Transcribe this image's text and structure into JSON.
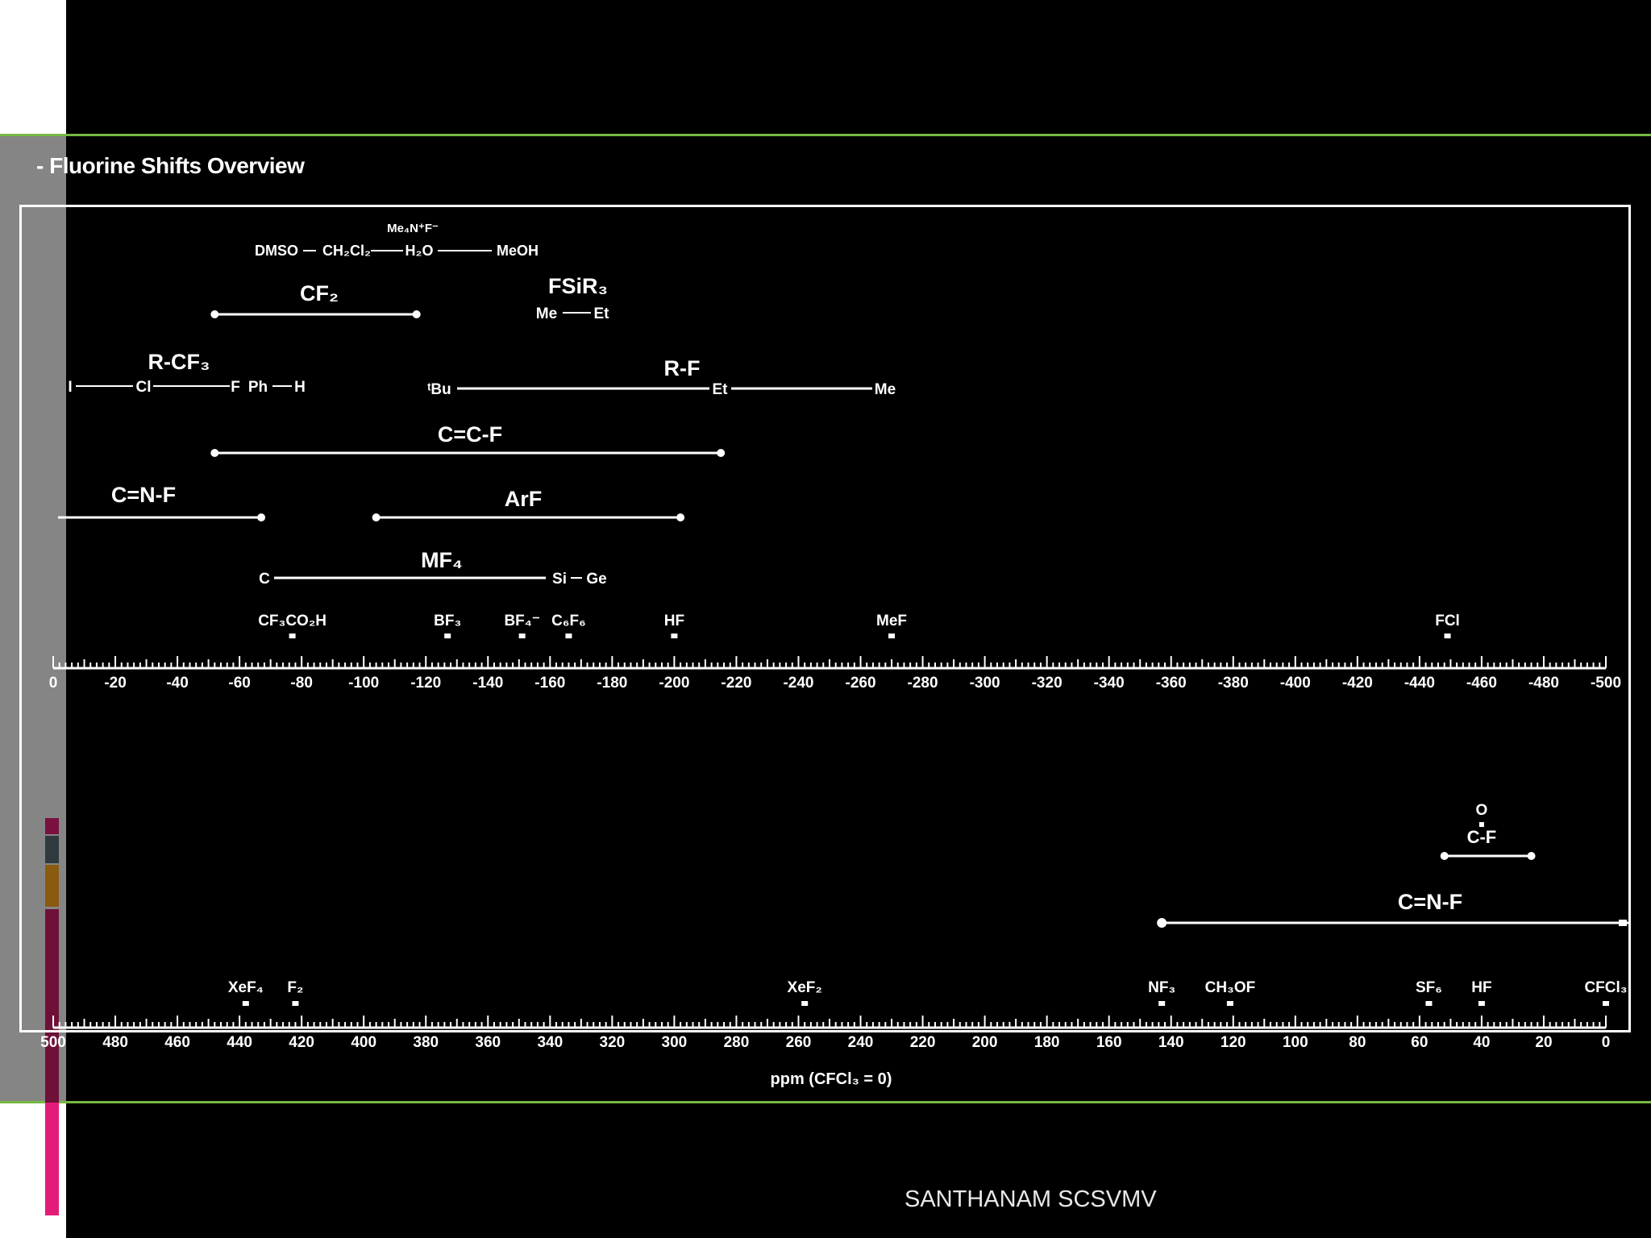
{
  "slide": {
    "title": "- Fluorine Shifts Overview",
    "footer": "SANTHANAM SCSVMV",
    "accent_color": "#77b843",
    "strip_colors": [
      "#7a1040",
      "#2f3a3f",
      "#8a5a10",
      "#6e1038",
      "#e31c79"
    ]
  },
  "chart_data": [
    {
      "type": "range-scale",
      "title": "Fluorine Shifts Overview",
      "axis": {
        "min": 0,
        "max": -500,
        "major_step": 20,
        "tick_labels": [
          "0",
          "-20",
          "-40",
          "-60",
          "-80",
          "-100",
          "-120",
          "-140",
          "-160",
          "-180",
          "-200",
          "-220",
          "-240",
          "-260",
          "-280",
          "-300",
          "-320",
          "-340",
          "-360",
          "-380",
          "-400",
          "-420",
          "-440",
          "-460",
          "-480",
          "-500"
        ]
      },
      "solvents": {
        "label_top": "Me₄N⁺F⁻",
        "items": [
          "DMSO",
          "CH₂Cl₂",
          "H₂O",
          "MeOH"
        ]
      },
      "ranges": [
        {
          "name": "CF₂",
          "from": -52,
          "to": -117
        },
        {
          "name": "FSiR₃",
          "end_labels": [
            "Me",
            "Et"
          ]
        },
        {
          "name": "R-CF₃",
          "end_labels": [
            "I",
            "Cl",
            "F",
            "Ph",
            "H"
          ]
        },
        {
          "name": "R-F",
          "start": "ᵗBu",
          "middle": "Et",
          "end": "Me",
          "from": -130,
          "to": -272
        },
        {
          "name": "C=C-F",
          "from": -52,
          "to": -215
        },
        {
          "name": "C=N-F",
          "from": 0,
          "to": -67
        },
        {
          "name": "ArF",
          "from": -104,
          "to": -202
        },
        {
          "name": "MF₄",
          "end_labels": [
            "C",
            "Si",
            "Ge"
          ]
        }
      ],
      "points": [
        {
          "label": "CF₃CO₂H",
          "ppm": -77
        },
        {
          "label": "BF₃",
          "ppm": -127
        },
        {
          "label": "BF₄⁻",
          "ppm": -151
        },
        {
          "label": "C₆F₆",
          "ppm": -166
        },
        {
          "label": "HF",
          "ppm": -200
        },
        {
          "label": "MeF",
          "ppm": -270
        },
        {
          "label": "FCl",
          "ppm": -449
        }
      ]
    },
    {
      "type": "range-scale",
      "axis": {
        "min": 500,
        "max": 0,
        "major_step": 20,
        "tick_labels": [
          "500",
          "480",
          "460",
          "440",
          "420",
          "400",
          "380",
          "360",
          "340",
          "320",
          "300",
          "280",
          "260",
          "240",
          "220",
          "200",
          "180",
          "160",
          "140",
          "120",
          "100",
          "80",
          "60",
          "40",
          "20",
          "0"
        ],
        "xlabel": "ppm (CFCl₃ = 0)"
      },
      "ranges": [
        {
          "name": "C-F",
          "top": "O",
          "from": 52,
          "to": 24
        },
        {
          "name": "C=N-F",
          "from": 143,
          "to": -8
        }
      ],
      "points": [
        {
          "label": "XeF₄",
          "ppm": 438
        },
        {
          "label": "F₂",
          "ppm": 422
        },
        {
          "label": "XeF₂",
          "ppm": 258
        },
        {
          "label": "NF₃",
          "ppm": 143
        },
        {
          "label": "CH₃OF",
          "ppm": 121
        },
        {
          "label": "SF₆",
          "ppm": 57
        },
        {
          "label": "HF",
          "ppm": 40
        },
        {
          "label": "CFCl₃",
          "ppm": 0
        }
      ]
    }
  ]
}
